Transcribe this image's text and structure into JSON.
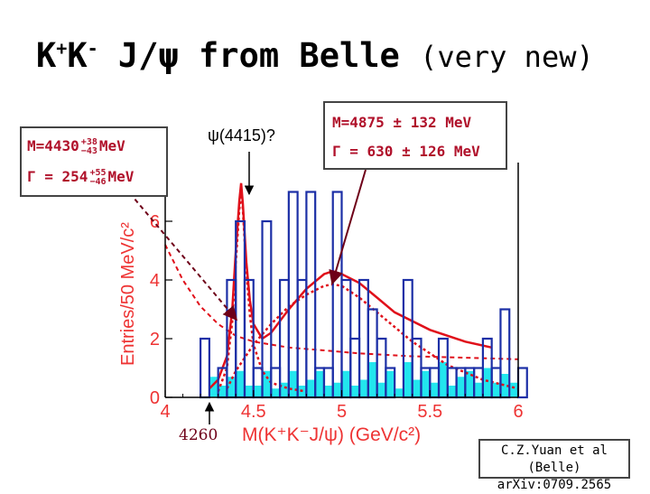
{
  "slide": {
    "title_main": "K",
    "title_sup1": "+",
    "title_k2": "K",
    "title_sup2": "-",
    "title_rest": " J/ψ from Belle ",
    "title_paren": "(very new)"
  },
  "fit_box_left": {
    "mass_label": "M=4430",
    "mass_err_plus": "+38",
    "mass_err_minus": "−43",
    "mass_unit": "MeV",
    "width_label": "Γ = 254",
    "width_err_plus": "+55",
    "width_err_minus": "−46",
    "width_unit": "MeV"
  },
  "fit_box_right": {
    "mass_text": "M=4875 ± 132 MeV",
    "width_text": "Γ = 630 ± 126  MeV"
  },
  "annotations": {
    "psi4415": "ψ(4415)?",
    "label4260": "4260"
  },
  "credit": {
    "line1": "C.Z.Yuan et al (Belle)",
    "line2": "arXiv:0709.2565"
  },
  "colors": {
    "data_hist": "#1c2fa6",
    "background_hist": "#22e6ee",
    "fit_curve": "#e0101a",
    "axis_text": "#ee3333",
    "arrow_dark": "#6e0018"
  },
  "chart_data": {
    "type": "bar",
    "xlabel": "M(K⁺K⁻J/ψ) (GeV/c²)",
    "ylabel": "Entries/50 MeV/c²",
    "xlim": [
      4.0,
      6.0
    ],
    "ylim": [
      0,
      8
    ],
    "x_ticks": [
      "4",
      "4.5",
      "5",
      "5.5",
      "6"
    ],
    "y_ticks": [
      "0",
      "2",
      "4",
      "6"
    ],
    "bin_width": 0.05,
    "series": [
      {
        "role": "data",
        "bin_edges_start": 4.2,
        "values": [
          2,
          0,
          1,
          4,
          6,
          4,
          1,
          6,
          1,
          4,
          7,
          4,
          7,
          1,
          1,
          7,
          4,
          2,
          4,
          3,
          2,
          1,
          0,
          4,
          2,
          1,
          1,
          2,
          1,
          1,
          1,
          1,
          2,
          1,
          3,
          0,
          1
        ]
      },
      {
        "role": "sideband",
        "bin_edges_start": 4.25,
        "values": [
          0.7,
          0.4,
          0.7,
          0.9,
          0.4,
          0.4,
          0.9,
          0.3,
          0.5,
          0.9,
          0.4,
          0.6,
          0.9,
          0.4,
          0.5,
          0.9,
          0.4,
          0.6,
          1.2,
          0.5,
          0.9,
          0.3,
          1.2,
          0.6,
          0.9,
          0.5,
          1.2,
          0.4,
          0.7,
          0.9,
          0.5,
          1.0,
          0.5,
          0.8,
          0.5
        ]
      }
    ],
    "curves": {
      "total_fit_x": [
        4.25,
        4.3,
        4.35,
        4.38,
        4.4,
        4.42,
        4.43,
        4.44,
        4.46,
        4.48,
        4.5,
        4.55,
        4.6,
        4.7,
        4.8,
        4.9,
        4.95,
        5.0,
        5.1,
        5.2,
        5.3,
        5.5,
        5.7,
        5.85
      ],
      "total_fit_y": [
        0.3,
        0.6,
        1.4,
        3.0,
        5.0,
        6.7,
        7.3,
        6.6,
        4.6,
        3.3,
        2.5,
        2.0,
        2.2,
        3.0,
        3.7,
        4.2,
        4.3,
        4.2,
        3.9,
        3.4,
        2.9,
        2.3,
        1.9,
        1.7
      ],
      "signal1_x": [
        4.3,
        4.35,
        4.38,
        4.4,
        4.42,
        4.43,
        4.44,
        4.46,
        4.48,
        4.5,
        4.55,
        4.6,
        4.7,
        4.8
      ],
      "signal1_y": [
        0.2,
        1.0,
        2.6,
        4.6,
        6.4,
        7.1,
        6.4,
        4.3,
        2.8,
        1.8,
        0.9,
        0.5,
        0.3,
        0.2
      ],
      "signal2_x": [
        4.35,
        4.4,
        4.5,
        4.6,
        4.7,
        4.8,
        4.9,
        4.95,
        5.0,
        5.1,
        5.2,
        5.3,
        5.4,
        5.5,
        5.6,
        5.8,
        6.0
      ],
      "signal2_y": [
        0.3,
        0.9,
        1.8,
        2.5,
        3.1,
        3.5,
        3.8,
        3.85,
        3.8,
        3.4,
        2.9,
        2.4,
        1.9,
        1.5,
        1.1,
        0.6,
        0.3
      ],
      "background_x": [
        4.0,
        4.1,
        4.2,
        4.3,
        4.4,
        4.5,
        4.7,
        4.9,
        5.1,
        5.4,
        5.7,
        6.0
      ],
      "background_y": [
        5.2,
        4.0,
        3.1,
        2.5,
        2.1,
        1.9,
        1.7,
        1.6,
        1.5,
        1.4,
        1.35,
        1.3
      ]
    }
  }
}
